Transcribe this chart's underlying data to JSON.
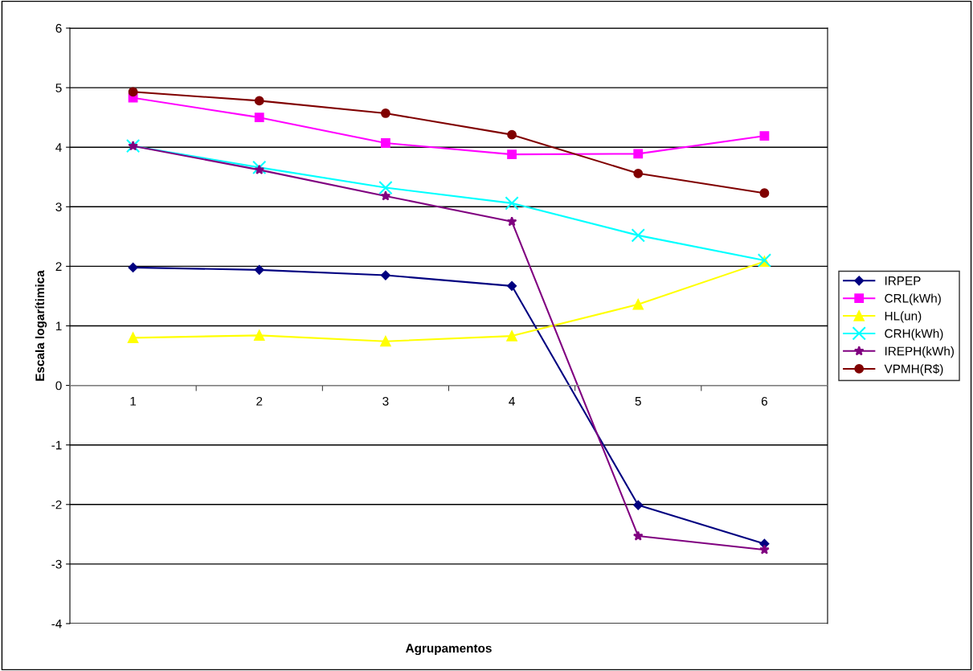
{
  "chart_data": {
    "type": "line",
    "xlabel": "Agrupamentos",
    "ylabel": "Escala logarítimica",
    "categories": [
      "1",
      "2",
      "3",
      "4",
      "5",
      "6"
    ],
    "series": [
      {
        "name": "IRPEP",
        "color": "#000080",
        "marker": "diamond",
        "values": [
          1.98,
          1.94,
          1.85,
          1.67,
          -2.01,
          -2.66
        ]
      },
      {
        "name": "CRL(kWh)",
        "color": "#ff00ff",
        "marker": "square",
        "values": [
          4.83,
          4.5,
          4.07,
          3.88,
          3.89,
          4.19
        ]
      },
      {
        "name": "HL(un)",
        "color": "#ffff00",
        "marker": "triangle",
        "values": [
          0.8,
          0.84,
          0.74,
          0.83,
          1.36,
          2.08
        ]
      },
      {
        "name": "CRH(kWh)",
        "color": "#00ffff",
        "marker": "cross",
        "values": [
          4.02,
          3.66,
          3.32,
          3.06,
          2.52,
          2.1
        ]
      },
      {
        "name": "IREPH(kWh)",
        "color": "#800080",
        "marker": "star",
        "values": [
          4.02,
          3.62,
          3.18,
          2.75,
          -2.53,
          -2.76
        ]
      },
      {
        "name": "VPMH(R$)",
        "color": "#800000",
        "marker": "circle",
        "values": [
          4.93,
          4.78,
          4.57,
          4.21,
          3.56,
          3.23
        ]
      }
    ],
    "ylim": [
      -4,
      6
    ],
    "yticks": [
      -4,
      -3,
      -2,
      -1,
      0,
      1,
      2,
      3,
      4,
      5,
      6
    ],
    "grid": "y",
    "legend": "right"
  }
}
